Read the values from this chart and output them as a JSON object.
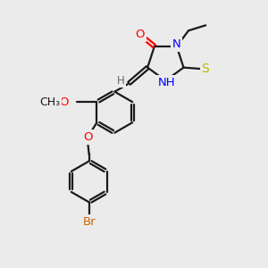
{
  "bg_color": "#ebebeb",
  "line_color": "#1a1a1a",
  "bond_lw": 1.6,
  "font_size": 9.5,
  "colors": {
    "O": "#ff0000",
    "N": "#0000ff",
    "S": "#b8b800",
    "Br": "#cc6600",
    "C": "#1a1a1a",
    "H": "#666666"
  },
  "layout": {
    "xlim": [
      0,
      10
    ],
    "ylim": [
      0,
      10
    ],
    "figsize": [
      3.0,
      3.0
    ],
    "dpi": 100
  }
}
